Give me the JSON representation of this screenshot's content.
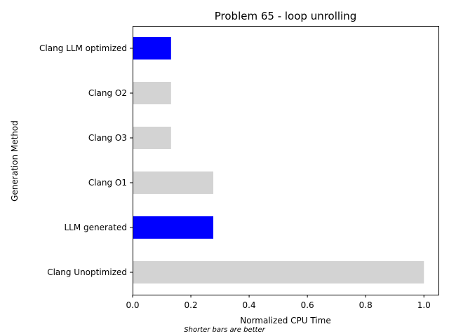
{
  "chart_data": {
    "type": "bar",
    "orientation": "horizontal",
    "title": "Problem 65 - loop unrolling",
    "xlabel": "Normalized CPU Time",
    "ylabel": "Generation Method",
    "note": "Shorter bars are better",
    "xlim": [
      0.0,
      1.05
    ],
    "xticks": [
      "0.0",
      "0.2",
      "0.4",
      "0.6",
      "0.8",
      "1.0"
    ],
    "grid": false,
    "categories": [
      "Clang LLM optimized",
      "Clang O2",
      "Clang O3",
      "Clang O1",
      "LLM generated",
      "Clang Unoptimized"
    ],
    "values": [
      0.132,
      0.132,
      0.132,
      0.277,
      0.277,
      1.0
    ],
    "bar_colors": [
      "#0000ff",
      "#d3d3d3",
      "#d3d3d3",
      "#d3d3d3",
      "#0000ff",
      "#d3d3d3"
    ]
  }
}
